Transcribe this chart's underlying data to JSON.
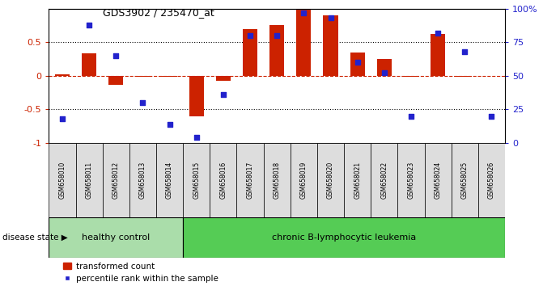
{
  "title": "GDS3902 / 235470_at",
  "samples": [
    "GSM658010",
    "GSM658011",
    "GSM658012",
    "GSM658013",
    "GSM658014",
    "GSM658015",
    "GSM658016",
    "GSM658017",
    "GSM658018",
    "GSM658019",
    "GSM658020",
    "GSM658021",
    "GSM658022",
    "GSM658023",
    "GSM658024",
    "GSM658025",
    "GSM658026"
  ],
  "bar_values": [
    0.02,
    0.33,
    -0.13,
    -0.02,
    -0.02,
    -0.6,
    -0.08,
    0.7,
    0.76,
    0.98,
    0.9,
    0.35,
    0.25,
    -0.01,
    0.62,
    -0.02,
    0.0
  ],
  "dot_values": [
    18,
    88,
    65,
    30,
    14,
    4,
    36,
    80,
    80,
    97,
    93,
    60,
    52,
    20,
    82,
    68,
    20
  ],
  "bar_color": "#cc2200",
  "dot_color": "#2222cc",
  "bar_width": 0.55,
  "ylim_left": [
    -1.0,
    1.0
  ],
  "yticks_left": [
    -1.0,
    -0.5,
    0.0,
    0.5
  ],
  "ytick_labels_left": [
    "-1",
    "-0.5",
    "0",
    "0.5"
  ],
  "yticks_right": [
    0,
    25,
    50,
    75,
    100
  ],
  "ytick_labels_right": [
    "0",
    "25",
    "50",
    "75",
    "100%"
  ],
  "hline_y": 0.0,
  "dotted_lines": [
    -0.5,
    0.5
  ],
  "group1_label": "healthy control",
  "group2_label": "chronic B-lymphocytic leukemia",
  "group1_count": 5,
  "disease_state_label": "disease state",
  "legend_bar_label": "transformed count",
  "legend_dot_label": "percentile rank within the sample",
  "group1_color": "#aaddaa",
  "group2_color": "#55cc55",
  "background_color": "#ffffff",
  "sample_box_color": "#dddddd"
}
